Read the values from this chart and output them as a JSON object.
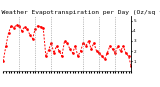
{
  "title": "Milwaukee Weather Evapotranspiration per Day (Oz/sq ft)",
  "line_color": "#ff0000",
  "bg_color": "#ffffff",
  "grid_color": "#888888",
  "y_values": [
    1.0,
    2.5,
    3.8,
    4.5,
    4.3,
    4.6,
    4.5,
    4.0,
    4.4,
    4.2,
    3.6,
    3.2,
    4.2,
    4.5,
    4.4,
    4.3,
    1.5,
    2.1,
    2.8,
    1.8,
    2.5,
    2.0,
    1.5,
    3.0,
    2.8,
    2.2,
    1.8,
    2.5,
    1.5,
    2.0,
    2.8,
    2.5,
    3.0,
    2.2,
    2.8,
    2.0,
    1.8,
    1.5,
    1.2,
    1.8,
    2.5,
    2.2,
    1.8,
    2.5,
    2.0,
    2.5,
    1.8,
    1.5,
    0.5
  ],
  "ylim": [
    0,
    5.5
  ],
  "yticks": [
    1,
    2,
    3,
    4,
    5
  ],
  "ytick_labels": [
    "1",
    "2",
    "3",
    "4",
    "5"
  ],
  "title_fontsize": 4.5,
  "tick_fontsize": 3.0,
  "vgrid_positions": [
    6,
    12,
    18,
    30,
    36,
    42
  ],
  "num_points": 49
}
